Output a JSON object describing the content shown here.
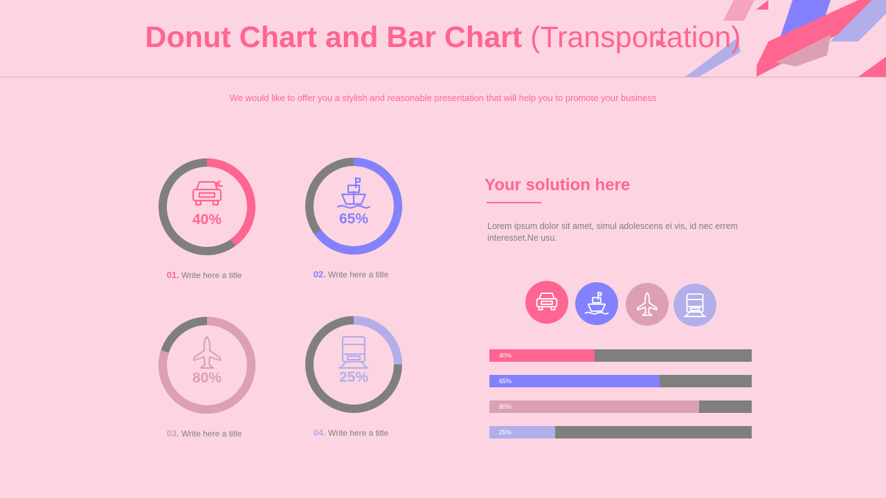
{
  "title": {
    "bold": "Donut Chart and Bar Chart",
    "plain": " (Transportation)"
  },
  "subtitle": "We would like to offer you a stylish and reasonable presentation that will help you to promote your business",
  "colors": {
    "background": "#fdd5e2",
    "accent": "#fe6590",
    "blue": "#8381fd",
    "mauve": "#dd9fb4",
    "lavender": "#b2aeea",
    "track": "#7f7f7f"
  },
  "donuts": [
    {
      "num": "01.",
      "caption": "Write here a title",
      "percent": "40%",
      "value": 40,
      "icon": "car-icon",
      "color": "#fe6590"
    },
    {
      "num": "02.",
      "caption": "Write here a title",
      "percent": "65%",
      "value": 65,
      "icon": "ship-icon",
      "color": "#8381fd"
    },
    {
      "num": "03.",
      "caption": "Write here a title",
      "percent": "80%",
      "value": 80,
      "icon": "airplane-icon",
      "color": "#dd9fb4"
    },
    {
      "num": "04.",
      "caption": "Write here a title",
      "percent": "25%",
      "value": 25,
      "icon": "train-icon",
      "color": "#b2aeea"
    }
  ],
  "solution": {
    "title": "Your solution here",
    "body": "Lorem ipsum dolor sit amet, simul adolescens ei vis, id nec errem interesset.Ne usu."
  },
  "icon_circles": [
    {
      "icon": "car-icon",
      "color": "#fe6590"
    },
    {
      "icon": "ship-icon",
      "color": "#8381fd"
    },
    {
      "icon": "airplane-icon",
      "color": "#dd9fb4"
    },
    {
      "icon": "train-icon",
      "color": "#b2aeea"
    }
  ],
  "chart_data": [
    {
      "type": "pie",
      "subtype": "donut",
      "values": [
        40
      ],
      "max": 100,
      "label": "40%"
    },
    {
      "type": "pie",
      "subtype": "donut",
      "values": [
        65
      ],
      "max": 100,
      "label": "65%"
    },
    {
      "type": "pie",
      "subtype": "donut",
      "values": [
        80
      ],
      "max": 100,
      "label": "80%"
    },
    {
      "type": "pie",
      "subtype": "donut",
      "values": [
        25
      ],
      "max": 100,
      "label": "25%"
    },
    {
      "type": "bar",
      "orientation": "horizontal",
      "values": [
        40,
        65,
        80,
        25
      ],
      "labels": [
        "40%",
        "65%",
        "80%",
        "25%"
      ],
      "xlim": [
        0,
        100
      ],
      "grid": false
    }
  ],
  "bars": [
    {
      "label": "40%",
      "value": 40,
      "color": "#fe6590"
    },
    {
      "label": "65%",
      "value": 65,
      "color": "#8381fd"
    },
    {
      "label": "80%",
      "value": 80,
      "color": "#dd9fb4"
    },
    {
      "label": "25%",
      "value": 25,
      "color": "#b2aeea"
    }
  ]
}
